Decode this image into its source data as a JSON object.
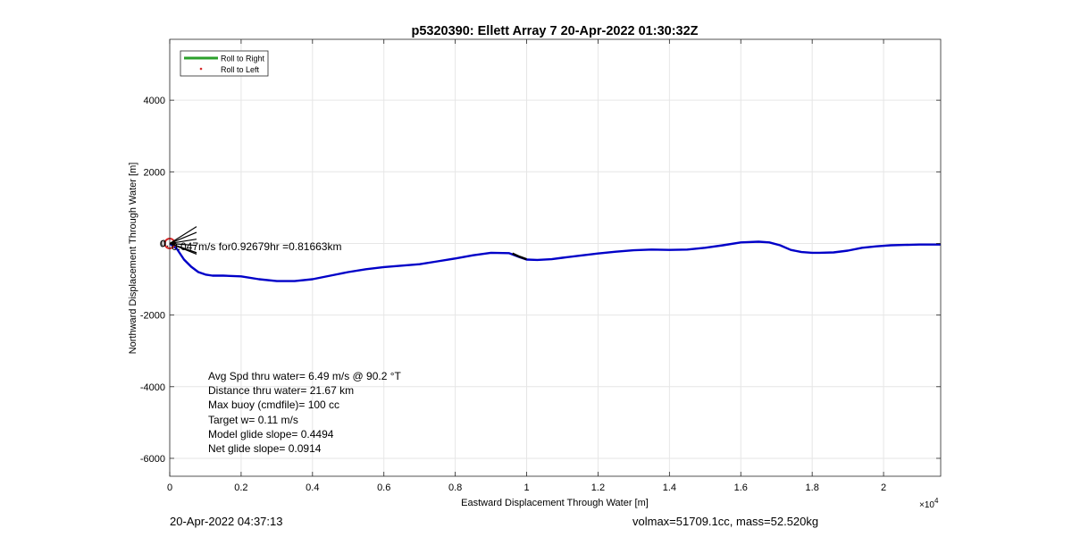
{
  "chart_data": {
    "type": "line",
    "title": "p5320390: Ellett Array 7 20-Apr-2022 01:30:32Z",
    "xlabel": "Eastward Displacement Through Water [m]",
    "ylabel": "Northward Displacement Through Water [m]",
    "x_exponent_label": "10",
    "x_exponent_power": "4",
    "xlim": [
      0,
      21600
    ],
    "ylim": [
      -6500,
      5700
    ],
    "x_ticks": [
      0,
      2000,
      4000,
      6000,
      8000,
      10000,
      12000,
      14000,
      16000,
      18000,
      20000
    ],
    "x_tick_labels": [
      "0",
      "0.2",
      "0.4",
      "0.6",
      "0.8",
      "1",
      "1.2",
      "1.4",
      "1.6",
      "1.8",
      "2"
    ],
    "y_ticks": [
      -6000,
      -4000,
      -2000,
      0,
      2000,
      4000
    ],
    "y_tick_labels": [
      "-6000",
      "-4000",
      "-2000",
      "0",
      "2000",
      "4000"
    ],
    "grid": true,
    "legend_position": "top-left",
    "legend": [
      {
        "label": "Roll to Right",
        "color": "#2ca02c",
        "style": "line"
      },
      {
        "label": "Roll to Left",
        "color": "#d62728",
        "style": "dot"
      }
    ],
    "series": [
      {
        "color": "#0000c8",
        "x": [
          0,
          200,
          400,
          600,
          800,
          1000,
          1200,
          1500,
          2000,
          2500,
          3000,
          3500,
          4000,
          4500,
          5000,
          5500,
          6000,
          6500,
          7000,
          7500,
          8000,
          8500,
          9000,
          9500,
          9800,
          10000,
          10300,
          10700,
          11000,
          11500,
          12000,
          12500,
          13000,
          13500,
          14000,
          14500,
          15000,
          15500,
          16000,
          16500,
          16800,
          17100,
          17400,
          17700,
          18000,
          18200,
          18600,
          19000,
          19400,
          19800,
          20200,
          20600,
          21000,
          21300,
          21600
        ],
        "y": [
          0,
          -150,
          -450,
          -650,
          -800,
          -870,
          -900,
          -900,
          -920,
          -1000,
          -1050,
          -1050,
          -1000,
          -900,
          -800,
          -720,
          -660,
          -620,
          -580,
          -500,
          -420,
          -330,
          -260,
          -270,
          -380,
          -450,
          -460,
          -440,
          -400,
          -340,
          -280,
          -230,
          -190,
          -170,
          -180,
          -170,
          -120,
          -50,
          30,
          50,
          30,
          -50,
          -180,
          -240,
          -260,
          -260,
          -250,
          -200,
          -120,
          -80,
          -50,
          -40,
          -30,
          -30,
          -30
        ]
      },
      {
        "color": "#000000",
        "x": [
          9600,
          9800,
          10000
        ],
        "y": [
          -280,
          -370,
          -440
        ]
      }
    ],
    "start_marker": {
      "x": 0,
      "y": 0,
      "color": "#d62728"
    },
    "current_label": "0.047m/s for0.92679hr =0.81663km",
    "current_label_prefix": "0.",
    "stats": [
      "Avg Spd thru water=  6.49 m/s @  90.2 °T",
      "Distance thru water= 21.67 km",
      "Max buoy (cmdfile)= 100 cc",
      "Target w= 0.11 m/s",
      "Model glide slope= 0.4494",
      "Net glide slope= 0.0914"
    ]
  },
  "footer": {
    "date": "20-Apr-2022 04:37:13",
    "info": "volmax=51709.1cc, mass=52.520kg"
  }
}
